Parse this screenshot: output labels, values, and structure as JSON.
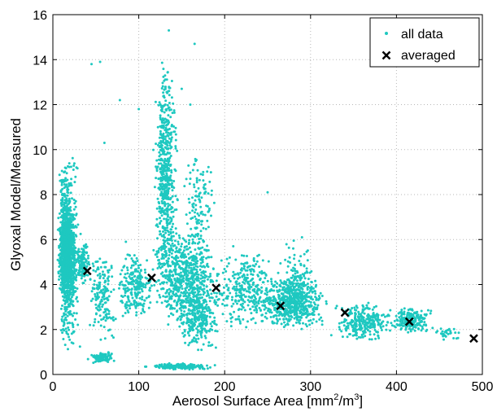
{
  "chart_data": {
    "type": "scatter",
    "xlabel": "Aerosol Surface Area [mm²/m³]",
    "xlabel_base": "Aerosol Surface Area [mm",
    "xlabel_sup1": "2",
    "xlabel_mid": "/m",
    "xlabel_sup2": "3",
    "xlabel_end": "]",
    "ylabel": "Glyoxal Model/Measured",
    "xlim": [
      0,
      500
    ],
    "ylim": [
      0,
      16
    ],
    "xticks": [
      "0",
      "100",
      "200",
      "300",
      "400",
      "500"
    ],
    "yticks": [
      "0",
      "2",
      "4",
      "6",
      "8",
      "10",
      "12",
      "14",
      "16"
    ],
    "grid": true,
    "legend_position": "top-right",
    "colors": {
      "all_data": "#1ec8c0",
      "averaged": "#000000"
    },
    "series": [
      {
        "name": "all data",
        "marker": "dot",
        "clusters": [
          {
            "x": [
              5,
              28
            ],
            "y": [
              3.5,
              7.5
            ],
            "n": 900
          },
          {
            "x": [
              5,
              25
            ],
            "y": [
              1.2,
              9.5
            ],
            "n": 500
          },
          {
            "x": [
              10,
              35
            ],
            "y": [
              0.8,
              10
            ],
            "n": 200
          },
          {
            "x": [
              25,
              45
            ],
            "y": [
              4,
              6
            ],
            "n": 120
          },
          {
            "x": [
              40,
              75
            ],
            "y": [
              1.5,
              5.5
            ],
            "n": 160
          },
          {
            "x": [
              40,
              75
            ],
            "y": [
              0.5,
              1.0
            ],
            "n": 90
          },
          {
            "x": [
              70,
              120
            ],
            "y": [
              2.5,
              5.5
            ],
            "n": 220
          },
          {
            "x": [
              100,
              200
            ],
            "y": [
              0.2,
              0.5
            ],
            "n": 160
          },
          {
            "x": [
              115,
              150
            ],
            "y": [
              3,
              14
            ],
            "n": 380
          },
          {
            "x": [
              120,
              140
            ],
            "y": [
              5,
              13.5
            ],
            "n": 180
          },
          {
            "x": [
              110,
              200
            ],
            "y": [
              2,
              6.5
            ],
            "n": 650
          },
          {
            "x": [
              140,
              200
            ],
            "y": [
              1,
              4
            ],
            "n": 250
          },
          {
            "x": [
              150,
              190
            ],
            "y": [
              5,
              10
            ],
            "n": 120
          },
          {
            "x": [
              180,
              270
            ],
            "y": [
              2,
              5.5
            ],
            "n": 300
          },
          {
            "x": [
              230,
              330
            ],
            "y": [
              2,
              4.3
            ],
            "n": 550
          },
          {
            "x": [
              260,
              310
            ],
            "y": [
              2.5,
              6
            ],
            "n": 140
          },
          {
            "x": [
              320,
              400
            ],
            "y": [
              1.5,
              3.2
            ],
            "n": 280
          },
          {
            "x": [
              390,
              445
            ],
            "y": [
              1.8,
              3
            ],
            "n": 200
          },
          {
            "x": [
              440,
              480
            ],
            "y": [
              1.5,
              2.2
            ],
            "n": 25
          }
        ]
      },
      {
        "name": "averaged",
        "marker": "x",
        "x": [
          40,
          115,
          190,
          265,
          340,
          415,
          490
        ],
        "y": [
          4.6,
          4.3,
          3.85,
          3.05,
          2.75,
          2.35,
          1.6
        ]
      }
    ]
  }
}
